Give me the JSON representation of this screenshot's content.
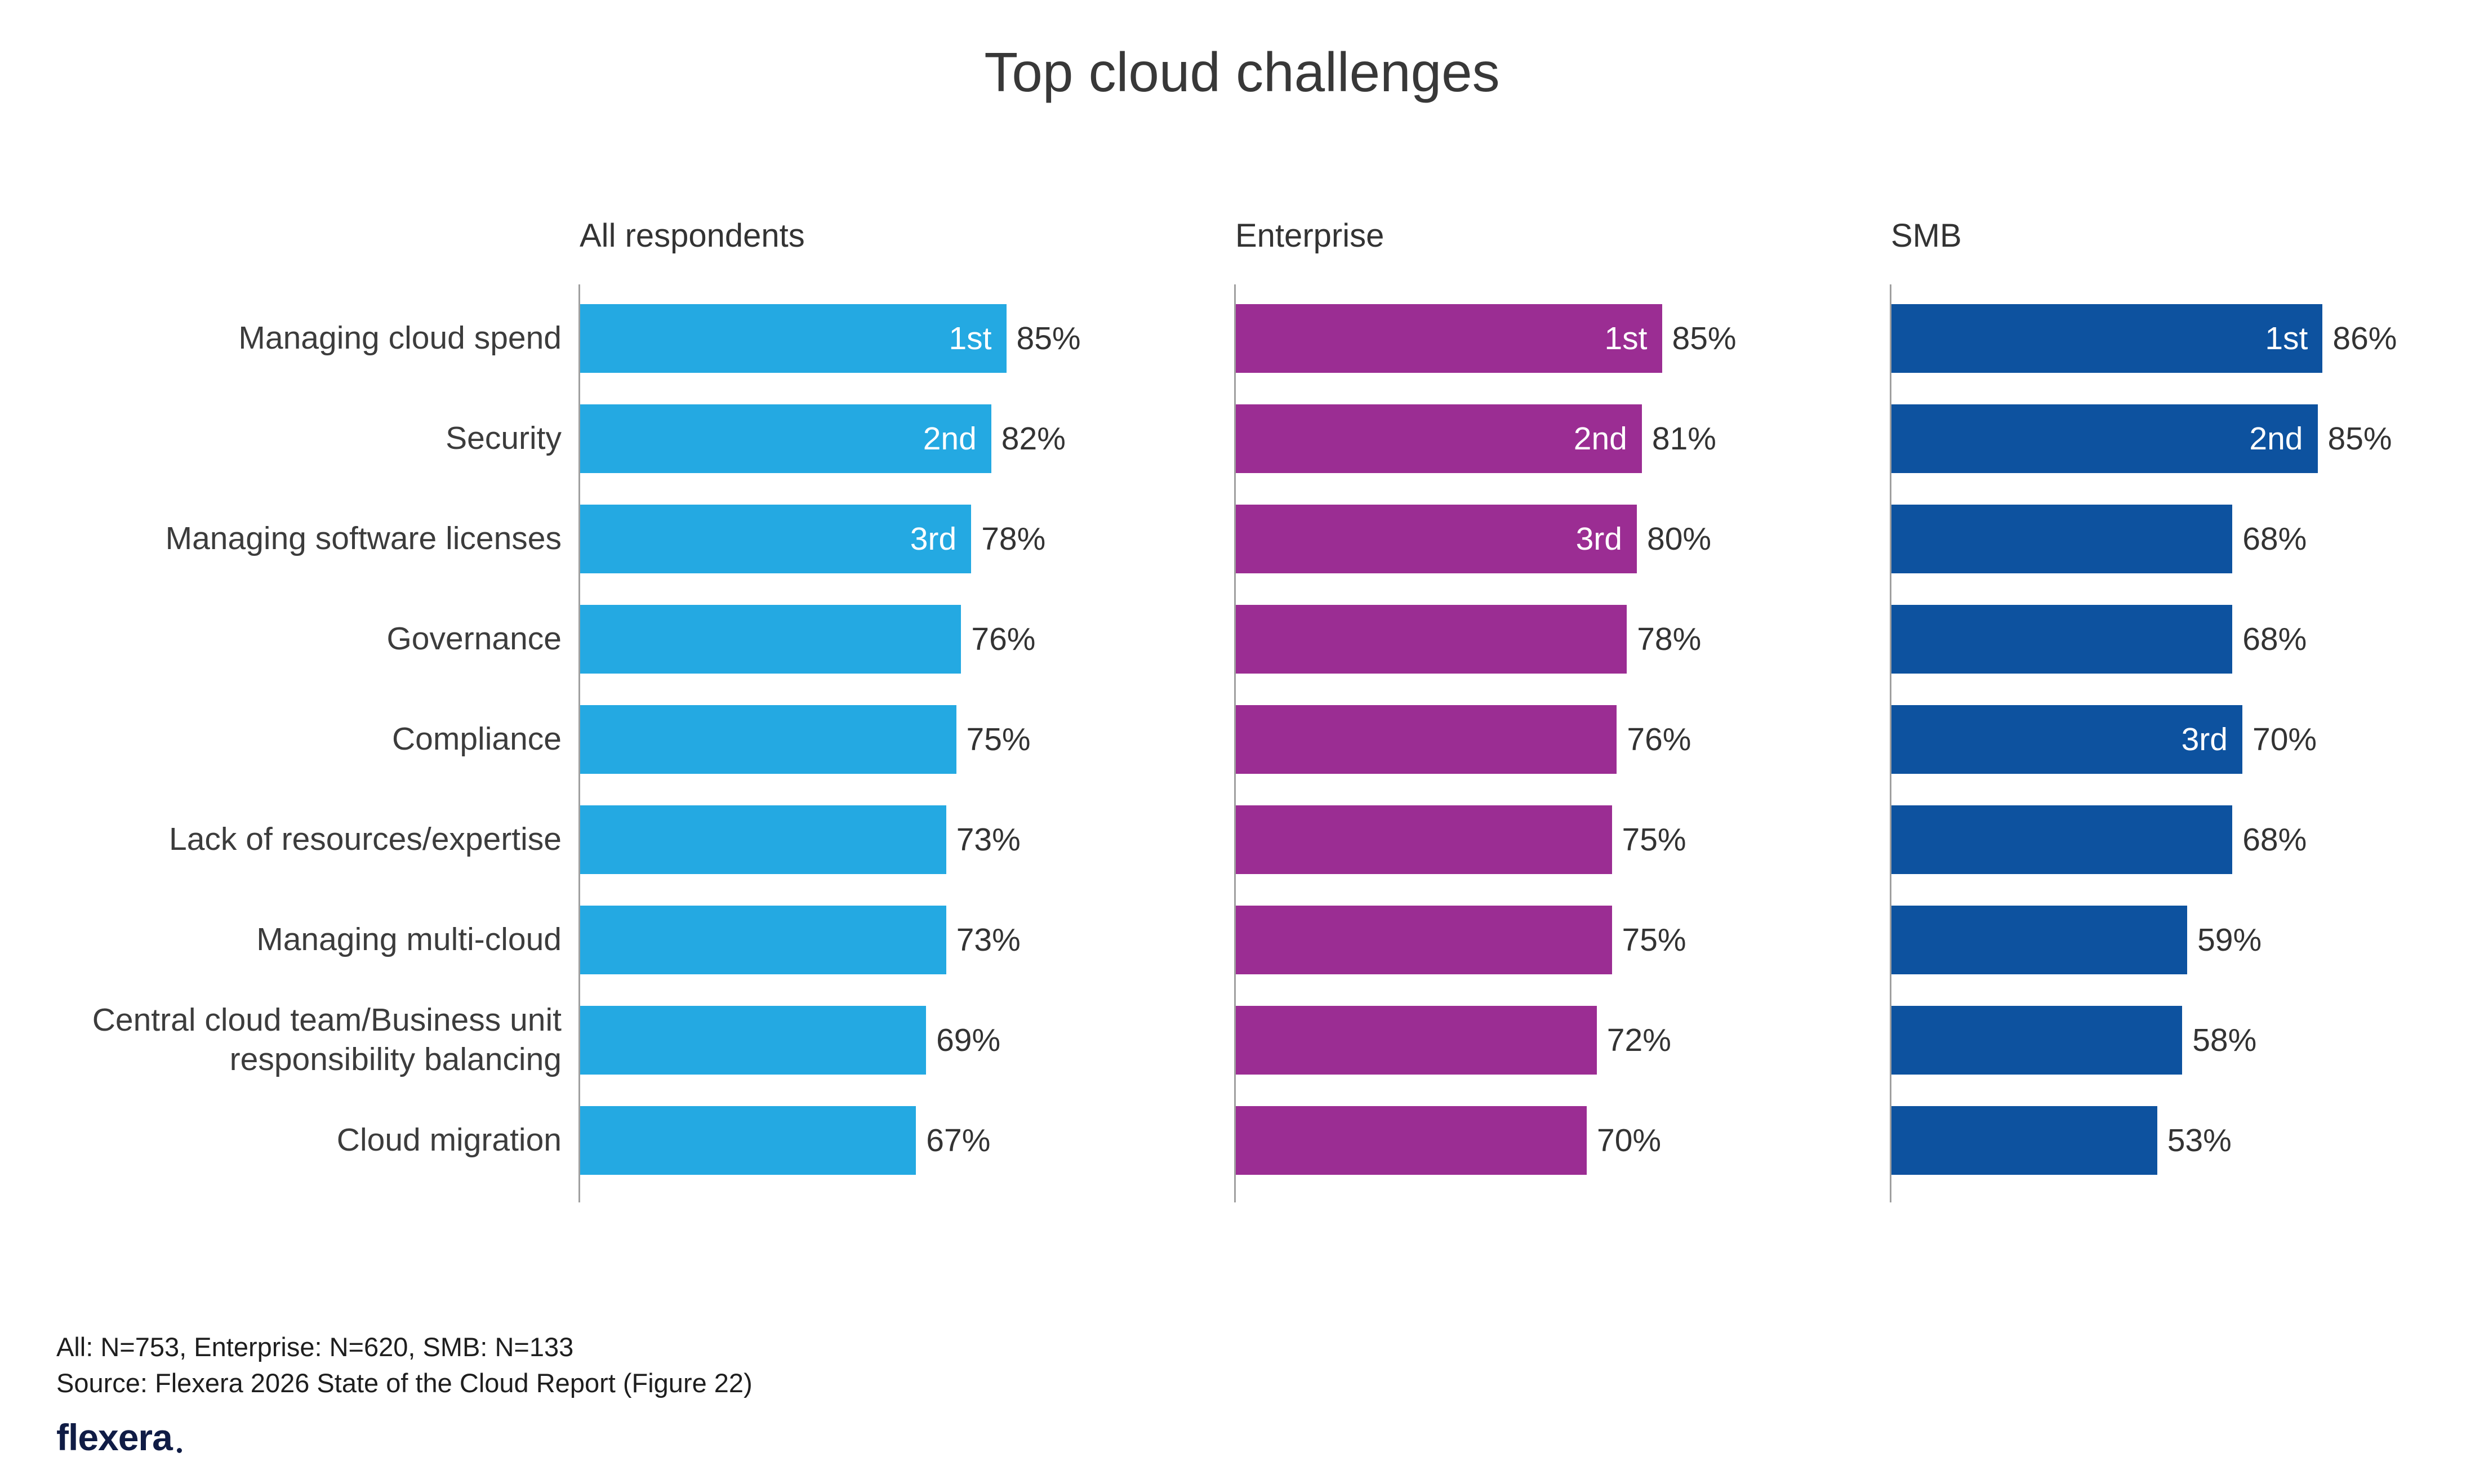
{
  "title": "Top cloud challenges",
  "chart_data": {
    "type": "bar",
    "orientation": "horizontal",
    "title": "Top cloud challenges",
    "xlabel": "",
    "ylabel": "",
    "xlim": [
      0,
      100
    ],
    "value_suffix": "%",
    "grid": false,
    "legend_position": "none",
    "categories": [
      "Managing cloud spend",
      "Security",
      "Managing software licenses",
      "Governance",
      "Compliance",
      "Lack of resources/expertise",
      "Managing multi-cloud",
      "Central cloud team/Business unit responsibility balancing",
      "Cloud migration"
    ],
    "series": [
      {
        "name": "All respondents",
        "color": "#24a9e2",
        "values": [
          85,
          82,
          78,
          76,
          75,
          73,
          73,
          69,
          67
        ],
        "ranks": [
          "1st",
          "2nd",
          "3rd",
          "",
          "",
          "",
          "",
          "",
          ""
        ]
      },
      {
        "name": "Enterprise",
        "color": "#9b2d93",
        "values": [
          85,
          81,
          80,
          78,
          76,
          75,
          75,
          72,
          70
        ],
        "ranks": [
          "1st",
          "2nd",
          "3rd",
          "",
          "",
          "",
          "",
          "",
          ""
        ]
      },
      {
        "name": "SMB",
        "color": "#0d529f",
        "values": [
          86,
          85,
          68,
          68,
          70,
          68,
          59,
          58,
          53
        ],
        "ranks": [
          "1st",
          "2nd",
          "",
          "",
          "3rd",
          "",
          "",
          "",
          ""
        ]
      }
    ]
  },
  "footer": {
    "note": "All: N=753, Enterprise: N=620, SMB: N=133",
    "source": "Source: Flexera 2026 State of the Cloud Report (Figure 22)",
    "logo": "flexera"
  }
}
